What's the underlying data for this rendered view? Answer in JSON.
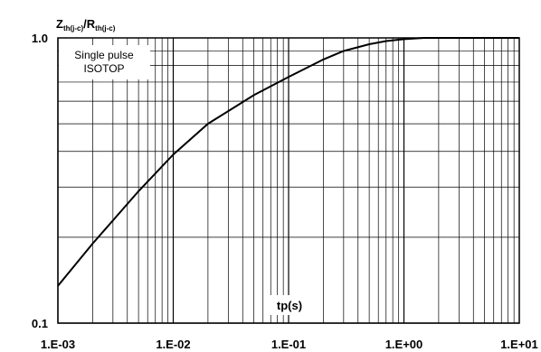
{
  "chart_data": {
    "type": "line",
    "title": "",
    "ylabel_main": "Z",
    "ylabel_main_sub": "th(j-c)",
    "ylabel_sep": "/R",
    "ylabel_den_sub": "th(j-c)",
    "xlabel": "tp(s)",
    "annotation_line1": "Single pulse",
    "annotation_line2": "ISOTOP",
    "x_scale": "log",
    "y_scale": "log",
    "xlim": [
      0.001,
      10
    ],
    "ylim": [
      0.1,
      1.0
    ],
    "x_tick_labels": [
      "1.E-03",
      "1.E-02",
      "1.E-01",
      "1.E+00",
      "1.E+01"
    ],
    "y_tick_labels": [
      "1.0",
      "0.1"
    ],
    "grid": true,
    "series": [
      {
        "x": [
          0.001,
          0.002,
          0.005,
          0.01,
          0.02,
          0.05,
          0.1,
          0.2,
          0.3,
          0.5,
          0.7,
          1.0,
          1.5,
          2.0,
          5.0,
          10.0
        ],
        "y": [
          0.135,
          0.19,
          0.29,
          0.39,
          0.5,
          0.63,
          0.73,
          0.84,
          0.9,
          0.95,
          0.975,
          0.99,
          1.0,
          1.0,
          1.0,
          1.0
        ]
      }
    ]
  }
}
